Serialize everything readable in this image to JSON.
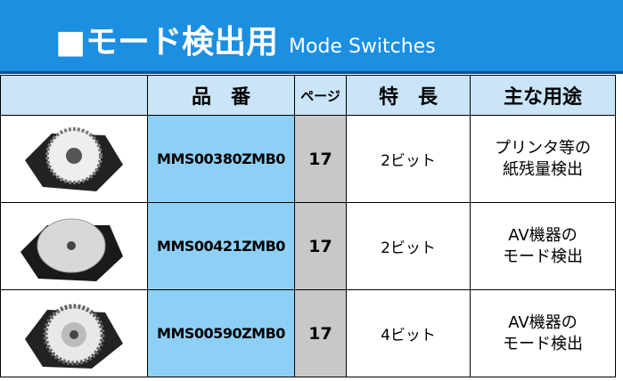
{
  "header": {
    "title": "■モード検出用",
    "subtitle": "Mode Switches"
  },
  "table": {
    "headers": [
      "品　番",
      "ページ",
      "特　長",
      "主な用途"
    ],
    "rows": [
      {
        "part": "MMS00380ZMB0",
        "page": 17,
        "feature": "2ビット",
        "use": [
          "プリンタ等の",
          "紙残量検出"
        ]
      },
      {
        "part": "MMS00421ZMB0",
        "page": 17,
        "feature": "2ビット",
        "use": [
          "AV機器の",
          "モード検出"
        ]
      },
      {
        "part": "MMS00590ZMB0",
        "page": 17,
        "feature": "4ビット",
        "use": [
          "AV機器の",
          "モード検出"
        ]
      }
    ]
  }
}
